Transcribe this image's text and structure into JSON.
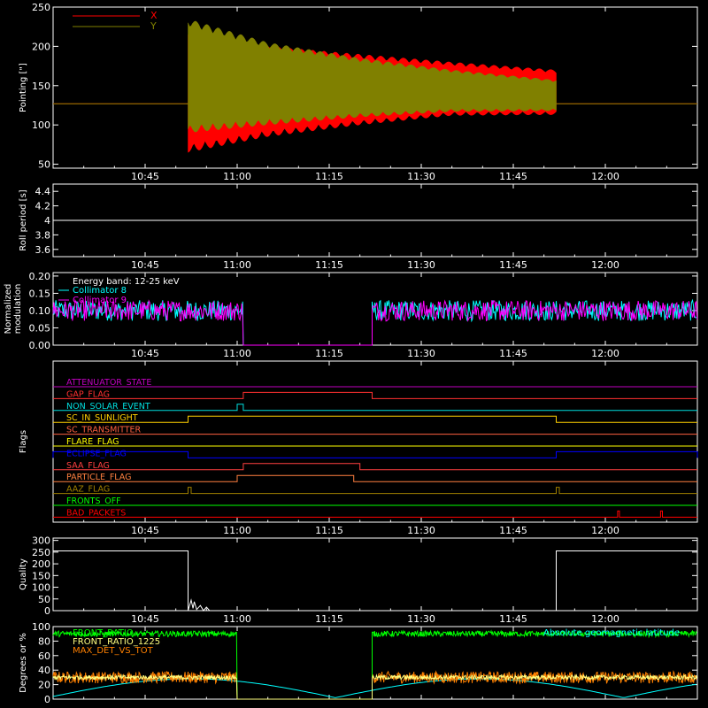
{
  "figure": {
    "time_ticks": [
      "10:45",
      "11:00",
      "11:15",
      "11:30",
      "11:45",
      "12:00"
    ],
    "time_range": [
      "10:30",
      "12:15"
    ]
  },
  "chart_data": [
    {
      "type": "line",
      "ylabel": "Pointing [\"]",
      "ylim": [
        45,
        250
      ],
      "yticks": [
        50,
        100,
        150,
        200,
        250
      ],
      "legend": "top-left",
      "series": [
        {
          "name": "X",
          "color": "#ff0000",
          "baseline": 127,
          "active_from": "10:52",
          "active_to": "11:52",
          "envelope": [
            {
              "t": "10:52",
              "upper": 215,
              "lower": 65
            },
            {
              "t": "11:05",
              "upper": 200,
              "lower": 85
            },
            {
              "t": "11:20",
              "upper": 190,
              "lower": 100
            },
            {
              "t": "11:35",
              "upper": 180,
              "lower": 112
            },
            {
              "t": "11:52",
              "upper": 170,
              "lower": 113
            }
          ]
        },
        {
          "name": "Y",
          "color": "#808000",
          "baseline": 127,
          "active_from": "10:52",
          "active_to": "11:52",
          "envelope": [
            {
              "t": "10:52",
              "upper": 235,
              "lower": 90
            },
            {
              "t": "11:05",
              "upper": 205,
              "lower": 100
            },
            {
              "t": "11:20",
              "upper": 185,
              "lower": 110
            },
            {
              "t": "11:35",
              "upper": 170,
              "lower": 117
            },
            {
              "t": "11:52",
              "upper": 157,
              "lower": 118
            }
          ]
        }
      ]
    },
    {
      "type": "line",
      "ylabel": "Roll period [s]",
      "ylim": [
        3.5,
        4.5
      ],
      "yticks": [
        3.6,
        3.8,
        4.0,
        4.2,
        4.4
      ],
      "series": [
        {
          "name": "",
          "color": "#ffffff",
          "value": 4.0
        }
      ]
    },
    {
      "type": "line",
      "ylabel": [
        "Normalized",
        "modulation"
      ],
      "ylim": [
        0,
        0.21
      ],
      "yticks": [
        "0.00",
        "0.05",
        "0.10",
        "0.15",
        "0.20"
      ],
      "annotation": "Energy band: 12-25 keV",
      "legend": "top-left",
      "gap": {
        "from": "11:01",
        "to": "11:22",
        "value": 0
      },
      "series": [
        {
          "name": "Collimator 8",
          "color": "#00ffff",
          "mean": 0.1,
          "spread": 0.03
        },
        {
          "name": "Collimator 9",
          "color": "#ff00ff",
          "mean": 0.1,
          "spread": 0.03
        }
      ]
    },
    {
      "type": "line",
      "ylabel": "Flags",
      "flags": [
        {
          "name": "ATTENUATOR_STATE",
          "color": "#c000c0",
          "on": []
        },
        {
          "name": "GAP_FLAG",
          "color": "#ff3030",
          "on": [
            [
              "11:01",
              "11:22"
            ]
          ]
        },
        {
          "name": "NON_SOLAR_EVENT",
          "color": "#00e0e0",
          "on": [
            [
              "11:00",
              "11:01"
            ]
          ]
        },
        {
          "name": "SC_IN_SUNLIGHT",
          "color": "#ffd000",
          "on": [
            [
              "10:52",
              "11:52"
            ]
          ]
        },
        {
          "name": "SC_TRANSMITTER",
          "color": "#ff6040",
          "on": []
        },
        {
          "name": "FLARE_FLAG",
          "color": "#ffff00",
          "on": []
        },
        {
          "name": "ECLIPSE_FLAG",
          "color": "#0000ff",
          "on": [
            [
              "10:30",
              "10:52"
            ],
            [
              "11:52",
              "12:15"
            ]
          ]
        },
        {
          "name": "SAA_FLAG",
          "color": "#ff4040",
          "on": [
            [
              "11:01",
              "11:20"
            ]
          ]
        },
        {
          "name": "PARTICLE_FLAG",
          "color": "#ff8040",
          "on": [
            [
              "11:00",
              "11:19"
            ]
          ]
        },
        {
          "name": "AAZ_FLAG",
          "color": "#a08000",
          "on": [
            [
              "10:52",
              "10:52.5"
            ],
            [
              "11:52",
              "11:52.5"
            ]
          ]
        },
        {
          "name": "FRONTS_OFF",
          "color": "#00ff00",
          "on": []
        },
        {
          "name": "BAD_PACKETS",
          "color": "#ff0000",
          "on": [
            [
              "12:02",
              "12:02.3"
            ],
            [
              "12:09",
              "12:09.3"
            ]
          ]
        }
      ]
    },
    {
      "type": "line",
      "ylabel": "Quality",
      "ylim": [
        0,
        310
      ],
      "yticks": [
        0,
        50,
        100,
        150,
        200,
        250,
        300
      ],
      "series": [
        {
          "name": "",
          "color": "#ffffff",
          "points": [
            [
              "10:30",
              255
            ],
            [
              "10:52",
              255
            ],
            [
              "10:52",
              0
            ],
            [
              "10:52.5",
              45
            ],
            [
              "10:52.8",
              10
            ],
            [
              "10:53",
              38
            ],
            [
              "10:53.4",
              5
            ],
            [
              "10:54",
              22
            ],
            [
              "10:54.5",
              0
            ],
            [
              "10:55",
              15
            ],
            [
              "10:55.5",
              0
            ],
            [
              "11:52",
              0
            ],
            [
              "11:52",
              255
            ],
            [
              "12:15",
              255
            ]
          ]
        }
      ]
    },
    {
      "type": "line",
      "ylabel": "Degrees or %",
      "ylim": [
        0,
        100
      ],
      "yticks": [
        0,
        20,
        40,
        60,
        80,
        100
      ],
      "legend": "top-left",
      "gap": {
        "from": "11:00",
        "to": "11:22"
      },
      "series": [
        {
          "name": "FRONT_RATIO",
          "color": "#00ff00",
          "mean": 90,
          "spread": 4
        },
        {
          "name": "FRONT_RATIO_1225",
          "color": "#ffff80",
          "mean": 30,
          "spread": 3
        },
        {
          "name": "MAX_DET_VS_TOT",
          "color": "#ff8000",
          "mean": 30,
          "spread": 8
        },
        {
          "name": "Absolute geomagnetic latitude",
          "color": "#00ffff",
          "legend": "top-right"
        }
      ]
    }
  ]
}
